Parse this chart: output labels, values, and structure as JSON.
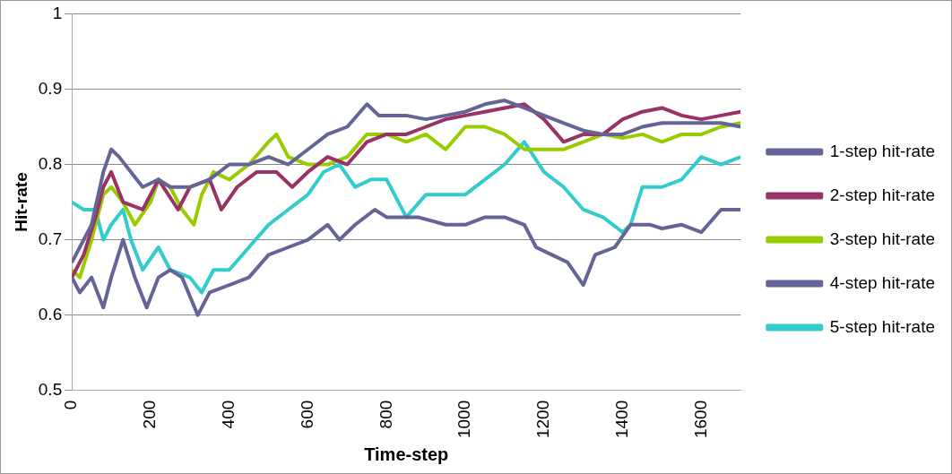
{
  "chart_data": {
    "type": "line",
    "xlabel": "Time-step",
    "ylabel": "Hit-rate",
    "xlim": [
      0,
      1700
    ],
    "xticks": [
      0,
      200,
      400,
      600,
      800,
      1000,
      1200,
      1400,
      1600
    ],
    "ylim": [
      0.5,
      1
    ],
    "yticks": [
      0.5,
      0.6,
      0.7,
      0.8,
      0.9,
      1
    ],
    "grid": "y",
    "legend": "right",
    "marker": "none",
    "line_style": "solid",
    "series": [
      {
        "name": "1-step hit-rate",
        "color": "#646497",
        "x": [
          0,
          20,
          50,
          80,
          100,
          120,
          150,
          180,
          220,
          250,
          300,
          350,
          400,
          450,
          500,
          550,
          600,
          650,
          700,
          750,
          780,
          850,
          900,
          950,
          1000,
          1050,
          1100,
          1150,
          1200,
          1250,
          1300,
          1350,
          1400,
          1450,
          1500,
          1550,
          1600,
          1650,
          1700
        ],
        "values": [
          0.67,
          0.69,
          0.72,
          0.79,
          0.82,
          0.81,
          0.79,
          0.77,
          0.78,
          0.77,
          0.77,
          0.78,
          0.8,
          0.8,
          0.81,
          0.8,
          0.82,
          0.84,
          0.85,
          0.88,
          0.865,
          0.865,
          0.86,
          0.865,
          0.87,
          0.88,
          0.885,
          0.875,
          0.865,
          0.855,
          0.845,
          0.84,
          0.84,
          0.85,
          0.855,
          0.855,
          0.855,
          0.855,
          0.85
        ]
      },
      {
        "name": "2-step hit-rate",
        "color": "#993366",
        "x": [
          0,
          30,
          60,
          80,
          100,
          130,
          180,
          220,
          270,
          300,
          350,
          380,
          420,
          470,
          520,
          560,
          600,
          650,
          700,
          750,
          800,
          850,
          900,
          950,
          1000,
          1050,
          1100,
          1150,
          1200,
          1250,
          1300,
          1350,
          1400,
          1450,
          1500,
          1550,
          1600,
          1650,
          1700
        ],
        "values": [
          0.65,
          0.68,
          0.73,
          0.77,
          0.79,
          0.75,
          0.74,
          0.78,
          0.74,
          0.77,
          0.78,
          0.74,
          0.77,
          0.79,
          0.79,
          0.77,
          0.79,
          0.81,
          0.8,
          0.83,
          0.84,
          0.84,
          0.85,
          0.86,
          0.865,
          0.87,
          0.875,
          0.88,
          0.86,
          0.83,
          0.84,
          0.84,
          0.86,
          0.87,
          0.875,
          0.865,
          0.86,
          0.865,
          0.87
        ]
      },
      {
        "name": "3-step hit-rate",
        "color": "#99cc00",
        "x": [
          0,
          20,
          50,
          80,
          100,
          130,
          160,
          200,
          220,
          250,
          280,
          310,
          330,
          360,
          400,
          450,
          500,
          520,
          550,
          600,
          650,
          700,
          750,
          800,
          850,
          900,
          950,
          1000,
          1050,
          1100,
          1150,
          1200,
          1250,
          1300,
          1350,
          1400,
          1450,
          1500,
          1550,
          1600,
          1650,
          1700
        ],
        "values": [
          0.66,
          0.65,
          0.7,
          0.76,
          0.77,
          0.75,
          0.72,
          0.75,
          0.78,
          0.77,
          0.74,
          0.72,
          0.76,
          0.79,
          0.78,
          0.8,
          0.83,
          0.84,
          0.81,
          0.8,
          0.8,
          0.81,
          0.84,
          0.84,
          0.83,
          0.84,
          0.82,
          0.85,
          0.85,
          0.84,
          0.82,
          0.82,
          0.82,
          0.83,
          0.84,
          0.835,
          0.84,
          0.83,
          0.84,
          0.84,
          0.85,
          0.855
        ]
      },
      {
        "name": "4-step hit-rate",
        "color": "#646497",
        "x": [
          0,
          20,
          50,
          80,
          100,
          130,
          160,
          190,
          220,
          250,
          280,
          320,
          350,
          400,
          450,
          500,
          550,
          600,
          650,
          680,
          720,
          770,
          800,
          850,
          880,
          950,
          1000,
          1050,
          1100,
          1150,
          1180,
          1220,
          1260,
          1300,
          1330,
          1380,
          1420,
          1470,
          1500,
          1550,
          1600,
          1650,
          1700
        ],
        "values": [
          0.65,
          0.63,
          0.65,
          0.61,
          0.65,
          0.7,
          0.65,
          0.61,
          0.65,
          0.66,
          0.65,
          0.6,
          0.63,
          0.64,
          0.65,
          0.68,
          0.69,
          0.7,
          0.72,
          0.7,
          0.72,
          0.74,
          0.73,
          0.73,
          0.73,
          0.72,
          0.72,
          0.73,
          0.73,
          0.72,
          0.69,
          0.68,
          0.67,
          0.64,
          0.68,
          0.69,
          0.72,
          0.72,
          0.715,
          0.72,
          0.71,
          0.74,
          0.74
        ]
      },
      {
        "name": "5-step hit-rate",
        "color": "#33cccc",
        "x": [
          0,
          30,
          60,
          80,
          100,
          130,
          150,
          180,
          220,
          250,
          300,
          330,
          360,
          400,
          450,
          500,
          550,
          600,
          640,
          680,
          720,
          760,
          800,
          850,
          900,
          950,
          1000,
          1050,
          1100,
          1150,
          1200,
          1250,
          1300,
          1350,
          1400,
          1420,
          1450,
          1500,
          1550,
          1600,
          1650,
          1700
        ],
        "values": [
          0.75,
          0.74,
          0.74,
          0.7,
          0.72,
          0.74,
          0.7,
          0.66,
          0.69,
          0.66,
          0.65,
          0.63,
          0.66,
          0.66,
          0.69,
          0.72,
          0.74,
          0.76,
          0.79,
          0.8,
          0.77,
          0.78,
          0.78,
          0.73,
          0.76,
          0.76,
          0.76,
          0.78,
          0.8,
          0.83,
          0.79,
          0.77,
          0.74,
          0.73,
          0.71,
          0.72,
          0.77,
          0.77,
          0.78,
          0.81,
          0.8,
          0.81
        ]
      }
    ]
  }
}
